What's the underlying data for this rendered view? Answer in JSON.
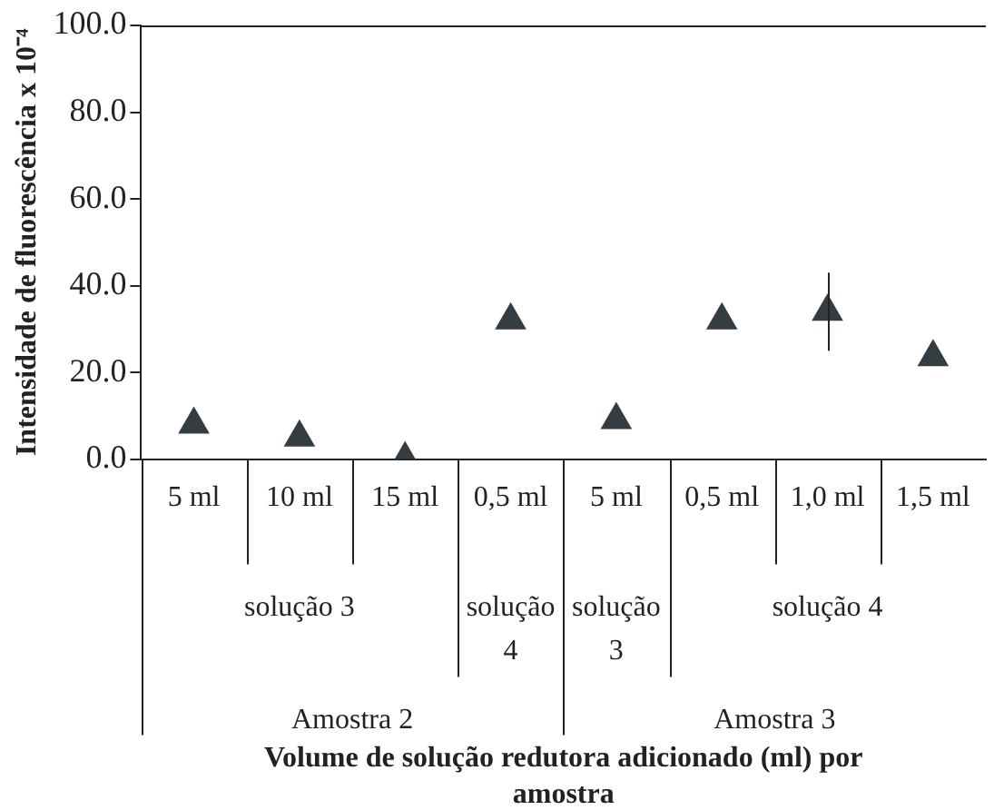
{
  "chart_data": {
    "type": "scatter",
    "ylabel": "Intensidade de fluorescência x 10⁻⁴",
    "categories": [
      "5 ml",
      "10 ml",
      "15 ml",
      "0,5 ml",
      "5 ml",
      "0,5 ml",
      "1,0 ml",
      "1,5 ml"
    ],
    "values": [
      8,
      5,
      0,
      32,
      9,
      32,
      34,
      23.5
    ],
    "errors": [
      null,
      null,
      null,
      null,
      null,
      null,
      [
        25,
        43
      ],
      null
    ],
    "color": "#333d42",
    "marker": "triangle",
    "ylim": [
      0,
      100
    ],
    "yticks": [
      {
        "value": 0,
        "label": "0.0"
      },
      {
        "value": 20,
        "label": "20.0"
      },
      {
        "value": 40,
        "label": "40.0"
      },
      {
        "value": 60,
        "label": "60.0"
      },
      {
        "value": 80,
        "label": "80.0"
      },
      {
        "value": 100,
        "label": "100.0"
      }
    ],
    "grid": false,
    "annotations": [
      "solução 3",
      "solução 4",
      "solução 3",
      "solução 4",
      "Amostra 2",
      "Amostra 3",
      "Volume de solução redutora adicionado (ml) por amostra"
    ]
  }
}
